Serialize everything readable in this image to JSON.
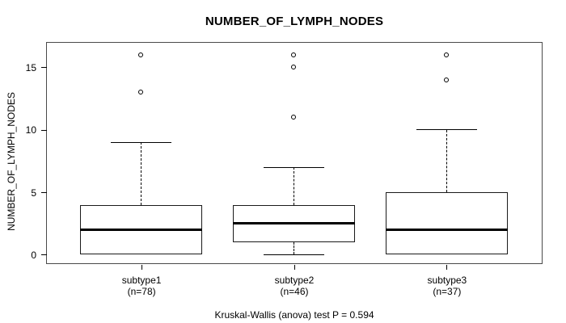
{
  "title": "NUMBER_OF_LYMPH_NODES",
  "caption": "Kruskal-Wallis (anova) test P = 0.594",
  "colors": {
    "foreground": "#000000",
    "background": "#ffffff",
    "plot_border": "#4a4a4a"
  },
  "chart_data": {
    "type": "boxplot",
    "title": "NUMBER_OF_LYMPH_NODES",
    "ylabel": "NUMBER_OF_LYMPH_NODES",
    "xlabel": "",
    "caption": "Kruskal-Wallis (anova) test P = 0.594",
    "p_value": 0.594,
    "test": "Kruskal-Wallis (anova)",
    "y_ticks": [
      0,
      5,
      10,
      15
    ],
    "ylim": [
      -0.65,
      17.0
    ],
    "grid": false,
    "legend": "none",
    "groups": [
      {
        "label": "subtype1",
        "sublabel": "(n=78)",
        "n": 78,
        "whisker_low": 0,
        "q1": 0,
        "median": 2,
        "q3": 4,
        "whisker_high": 9,
        "outliers": [
          13,
          16
        ]
      },
      {
        "label": "subtype2",
        "sublabel": "(n=46)",
        "n": 46,
        "whisker_low": 0,
        "q1": 1,
        "median": 2.5,
        "q3": 4,
        "whisker_high": 7,
        "outliers": [
          11,
          15,
          16
        ]
      },
      {
        "label": "subtype3",
        "sublabel": "(n=37)",
        "n": 37,
        "whisker_low": 0,
        "q1": 0,
        "median": 2,
        "q3": 5,
        "whisker_high": 10,
        "outliers": [
          14,
          16
        ]
      }
    ]
  }
}
